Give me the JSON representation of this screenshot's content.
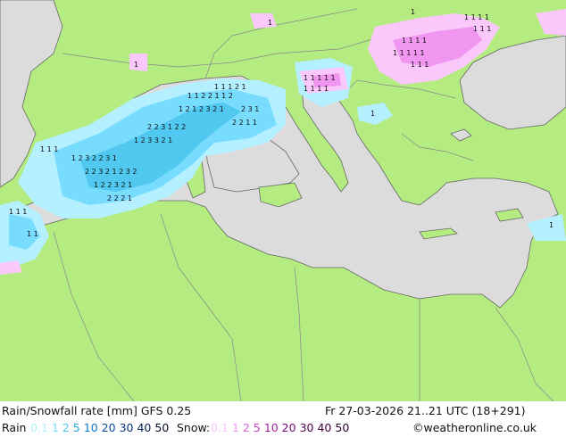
{
  "header": {
    "title": "Rain/Snowfall rate [mm] GFS 0.25",
    "datetime": "Fr 27-03-2026 21..21 UTC (18+291)"
  },
  "legend": {
    "rain_label": "Rain",
    "rain_levels": [
      {
        "text": "0.1",
        "color": "#b4f0ff"
      },
      {
        "text": "1",
        "color": "#78dcff"
      },
      {
        "text": "2",
        "color": "#50c8f0"
      },
      {
        "text": "5",
        "color": "#28a8e0"
      },
      {
        "text": "10",
        "color": "#1478c8"
      },
      {
        "text": "20",
        "color": "#0a50a0"
      },
      {
        "text": "30",
        "color": "#0a3278"
      },
      {
        "text": "40",
        "color": "#0a1e50"
      },
      {
        "text": "50",
        "color": "#000a28"
      }
    ],
    "snow_label": "Snow:",
    "snow_levels": [
      {
        "text": "0.1",
        "color": "#fac8fa"
      },
      {
        "text": "1",
        "color": "#f096f0"
      },
      {
        "text": "2",
        "color": "#e064e0"
      },
      {
        "text": "5",
        "color": "#c83cc8"
      },
      {
        "text": "10",
        "color": "#a01ea0"
      },
      {
        "text": "20",
        "color": "#780a78"
      },
      {
        "text": "30",
        "color": "#500050"
      },
      {
        "text": "40",
        "color": "#3c003c"
      },
      {
        "text": "50",
        "color": "#280028"
      }
    ],
    "credit": "©weatheronline.co.uk"
  },
  "colors": {
    "land": "#b4ec82",
    "sea": "#dcdcdc",
    "border": "#888888",
    "coast": "#666666",
    "rain_light": "#b4f0ff",
    "rain_mid": "#78dcff",
    "rain_heavy": "#50c8f0",
    "snow_light": "#fac8fa",
    "snow_mid": "#f096f0",
    "marker": "#111111"
  },
  "map": {
    "region": "Mediterranean",
    "icon": "precipitation-map"
  }
}
